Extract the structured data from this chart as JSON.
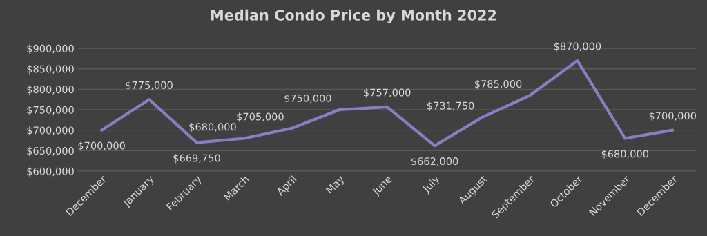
{
  "chart_data": {
    "type": "line",
    "title": "Median Condo Price by Month 2022",
    "categories": [
      "December",
      "January",
      "February",
      "March",
      "April",
      "May",
      "June",
      "July",
      "August",
      "September",
      "October",
      "November",
      "December"
    ],
    "series": [
      {
        "color": "#8e7cc3",
        "values": [
          700000,
          775000,
          669750,
          680000,
          705000,
          750000,
          757000,
          662000,
          731750,
          785000,
          870000,
          680000,
          700000
        ],
        "value_labels": [
          "$700,000",
          "$775,000",
          "$669,750",
          "$680,000",
          "$705,000",
          "$750,000",
          "$757,000",
          "$662,000",
          "$731,750",
          "$785,000",
          "$870,000",
          "$680,000",
          "$700,000"
        ]
      }
    ],
    "ylim": [
      600000,
      900000
    ],
    "yticks": [
      {
        "value": 600000,
        "label": "$600,000"
      },
      {
        "value": 650000,
        "label": "$650,000"
      },
      {
        "value": 700000,
        "label": "$700,000"
      },
      {
        "value": 750000,
        "label": "$750,000"
      },
      {
        "value": 800000,
        "label": "$800,000"
      },
      {
        "value": 850000,
        "label": "$850,000"
      },
      {
        "value": 900000,
        "label": "$900,000"
      }
    ],
    "grid": "y",
    "marker": "none",
    "line_style": "solid"
  }
}
